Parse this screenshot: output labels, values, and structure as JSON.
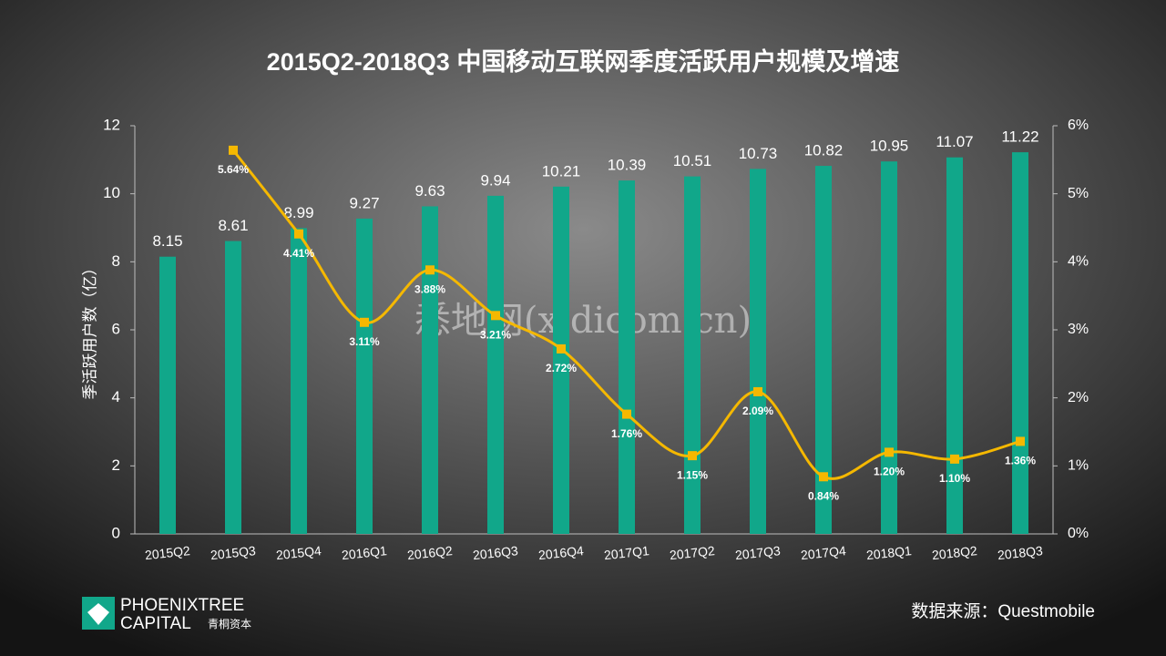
{
  "chart_data": {
    "type": "bar-line",
    "title": "2015Q2-2018Q3  中国移动互联网季度活跃用户规模及增速",
    "ylabel": "季活跃用户数（亿）",
    "categories": [
      "2015Q2",
      "2015Q3",
      "2015Q4",
      "2016Q1",
      "2016Q2",
      "2016Q3",
      "2016Q4",
      "2017Q1",
      "2017Q2",
      "2017Q3",
      "2017Q4",
      "2018Q1",
      "2018Q2",
      "2018Q3"
    ],
    "series": [
      {
        "type": "bar",
        "color": "#11a78a",
        "values": [
          8.15,
          8.61,
          8.99,
          9.27,
          9.63,
          9.94,
          10.21,
          10.39,
          10.51,
          10.73,
          10.82,
          10.95,
          11.07,
          11.22
        ]
      },
      {
        "type": "line",
        "color": "#f5b800",
        "axis": "y2",
        "values": [
          null,
          5.64,
          4.41,
          3.11,
          3.88,
          3.21,
          2.72,
          1.76,
          1.15,
          2.09,
          0.84,
          1.2,
          1.1,
          1.36
        ],
        "value_labels": [
          null,
          "5.64%",
          "4.41%",
          "3.11%",
          "3.88%",
          "3.21%",
          "2.72%",
          "1.76%",
          "1.15%",
          "2.09%",
          "0.84%",
          "1.20%",
          "1.10%",
          "1.36%"
        ]
      }
    ],
    "ylim": [
      0,
      12
    ],
    "yticks": [
      0,
      2,
      4,
      6,
      8,
      10,
      12
    ],
    "y2lim": [
      0,
      6
    ],
    "y2ticks": [
      {
        "value": 0,
        "label": "0%"
      },
      {
        "value": 1,
        "label": "1%"
      },
      {
        "value": 2,
        "label": "2%"
      },
      {
        "value": 3,
        "label": "3%"
      },
      {
        "value": 4,
        "label": "4%"
      },
      {
        "value": 5,
        "label": "5%"
      },
      {
        "value": 6,
        "label": "6%"
      }
    ],
    "source": "数据来源：Questmobile",
    "watermark": "悉地网(xidicom.cn)",
    "logo": [
      "PHOENIXTREE",
      "CAPITAL",
      "青桐资本"
    ]
  }
}
